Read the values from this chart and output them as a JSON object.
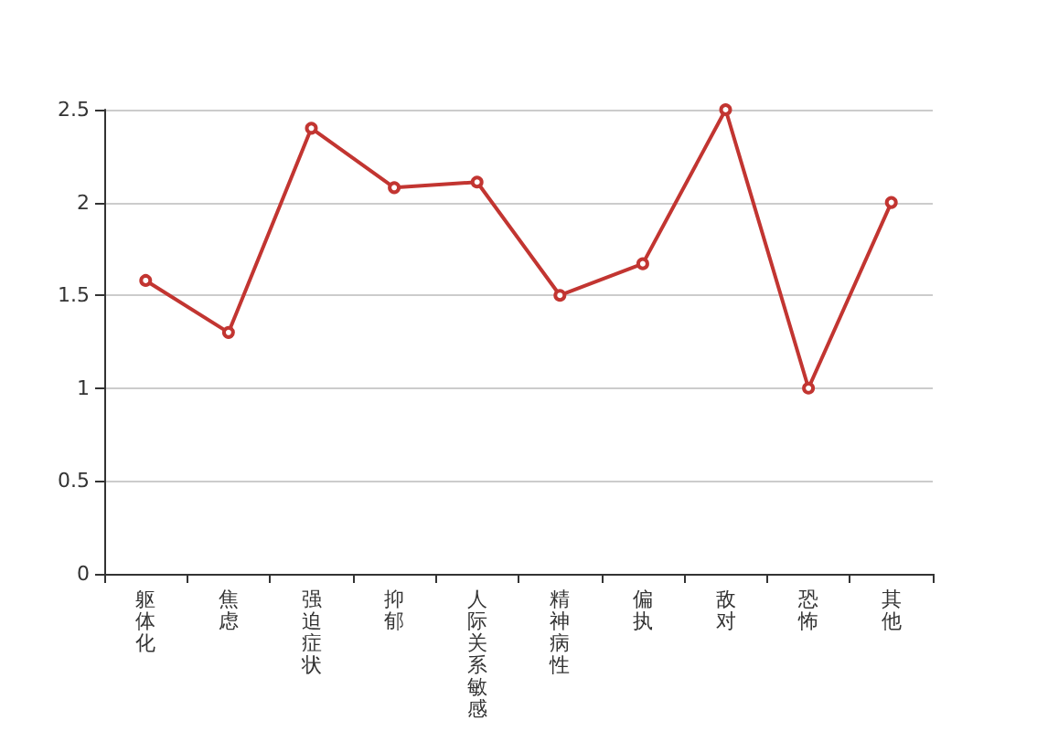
{
  "chart_data": {
    "type": "line",
    "categories": [
      "躯体化",
      "焦虑",
      "强迫症状",
      "抑郁",
      "人际关系敏感",
      "精神病性",
      "偏执",
      "敌对",
      "恐怖",
      "其他"
    ],
    "series": [
      {
        "color": "#c23531",
        "values": [
          1.58,
          1.3,
          2.4,
          2.08,
          2.11,
          1.5,
          1.67,
          2.5,
          1.0,
          2.0
        ]
      }
    ],
    "ylim": [
      0,
      2.5
    ],
    "yticks": [
      0,
      0.5,
      1,
      1.5,
      2,
      2.5
    ],
    "grid": "y",
    "marker": "circle",
    "line_style": "solid"
  }
}
